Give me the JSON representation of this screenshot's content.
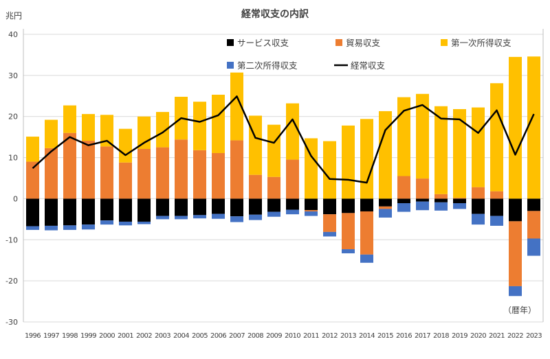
{
  "chart_data": {
    "type": "bar",
    "stacked": true,
    "title": "経常収支の内訳",
    "ylabel": "兆円",
    "annotation": "（暦年）",
    "ylim": [
      -30,
      40
    ],
    "yticks": [
      -30,
      -20,
      -10,
      0,
      10,
      20,
      30,
      40
    ],
    "grid": true,
    "legend_position": "top",
    "categories": [
      "1996",
      "1997",
      "1998",
      "1999",
      "2000",
      "2001",
      "2002",
      "2003",
      "2004",
      "2005",
      "2006",
      "2007",
      "2008",
      "2009",
      "2010",
      "2011",
      "2012",
      "2013",
      "2014",
      "2015",
      "2016",
      "2017",
      "2018",
      "2019",
      "2020",
      "2021",
      "2022",
      "2023"
    ],
    "series": [
      {
        "name": "サービス収支",
        "kind": "bar",
        "color": "#000000",
        "values": [
          -6.7,
          -6.6,
          -6.5,
          -6.3,
          -5.3,
          -5.6,
          -5.6,
          -4.2,
          -4.2,
          -4.0,
          -3.7,
          -4.3,
          -3.9,
          -3.2,
          -2.7,
          -2.8,
          -3.8,
          -3.5,
          -3.1,
          -1.9,
          -1.1,
          -0.7,
          -0.9,
          -1.1,
          -3.7,
          -4.2,
          -5.5,
          -3.0
        ]
      },
      {
        "name": "貿易収支",
        "kind": "bar",
        "color": "#ED7D31",
        "values": [
          9.0,
          12.3,
          16.0,
          14.1,
          12.7,
          8.8,
          12.1,
          12.5,
          14.4,
          11.8,
          11.1,
          14.2,
          5.8,
          5.3,
          9.5,
          -0.3,
          -4.3,
          -8.8,
          -10.5,
          -0.6,
          5.5,
          4.9,
          1.1,
          0.2,
          2.8,
          1.8,
          -15.8,
          -6.7
        ]
      },
      {
        "name": "第一次所得収支",
        "kind": "bar",
        "color": "#FFC000",
        "values": [
          6.1,
          6.9,
          6.7,
          6.5,
          7.7,
          8.2,
          7.9,
          8.6,
          10.4,
          11.8,
          14.2,
          16.5,
          14.4,
          12.7,
          13.7,
          14.7,
          14.0,
          17.8,
          19.4,
          21.3,
          19.2,
          20.6,
          21.4,
          21.6,
          19.4,
          26.3,
          34.5,
          34.6
        ]
      },
      {
        "name": "第二次所得収支",
        "kind": "bar",
        "color": "#4472C4",
        "values": [
          -0.9,
          -1.1,
          -1.1,
          -1.2,
          -1.0,
          -0.9,
          -0.6,
          -0.8,
          -0.8,
          -0.8,
          -1.2,
          -1.4,
          -1.3,
          -1.2,
          -1.1,
          -1.1,
          -1.1,
          -1.0,
          -2.0,
          -2.1,
          -2.1,
          -2.1,
          -2.0,
          -1.4,
          -2.6,
          -2.4,
          -2.4,
          -4.2
        ]
      },
      {
        "name": "経常収支",
        "kind": "line",
        "color": "#000000",
        "values": [
          7.4,
          11.5,
          15.0,
          13.0,
          14.1,
          10.6,
          13.6,
          16.1,
          19.6,
          18.7,
          20.3,
          24.9,
          14.8,
          13.6,
          19.3,
          10.4,
          4.8,
          4.6,
          3.9,
          16.7,
          21.4,
          22.8,
          19.5,
          19.3,
          16.0,
          21.5,
          10.7,
          20.6
        ]
      }
    ]
  }
}
